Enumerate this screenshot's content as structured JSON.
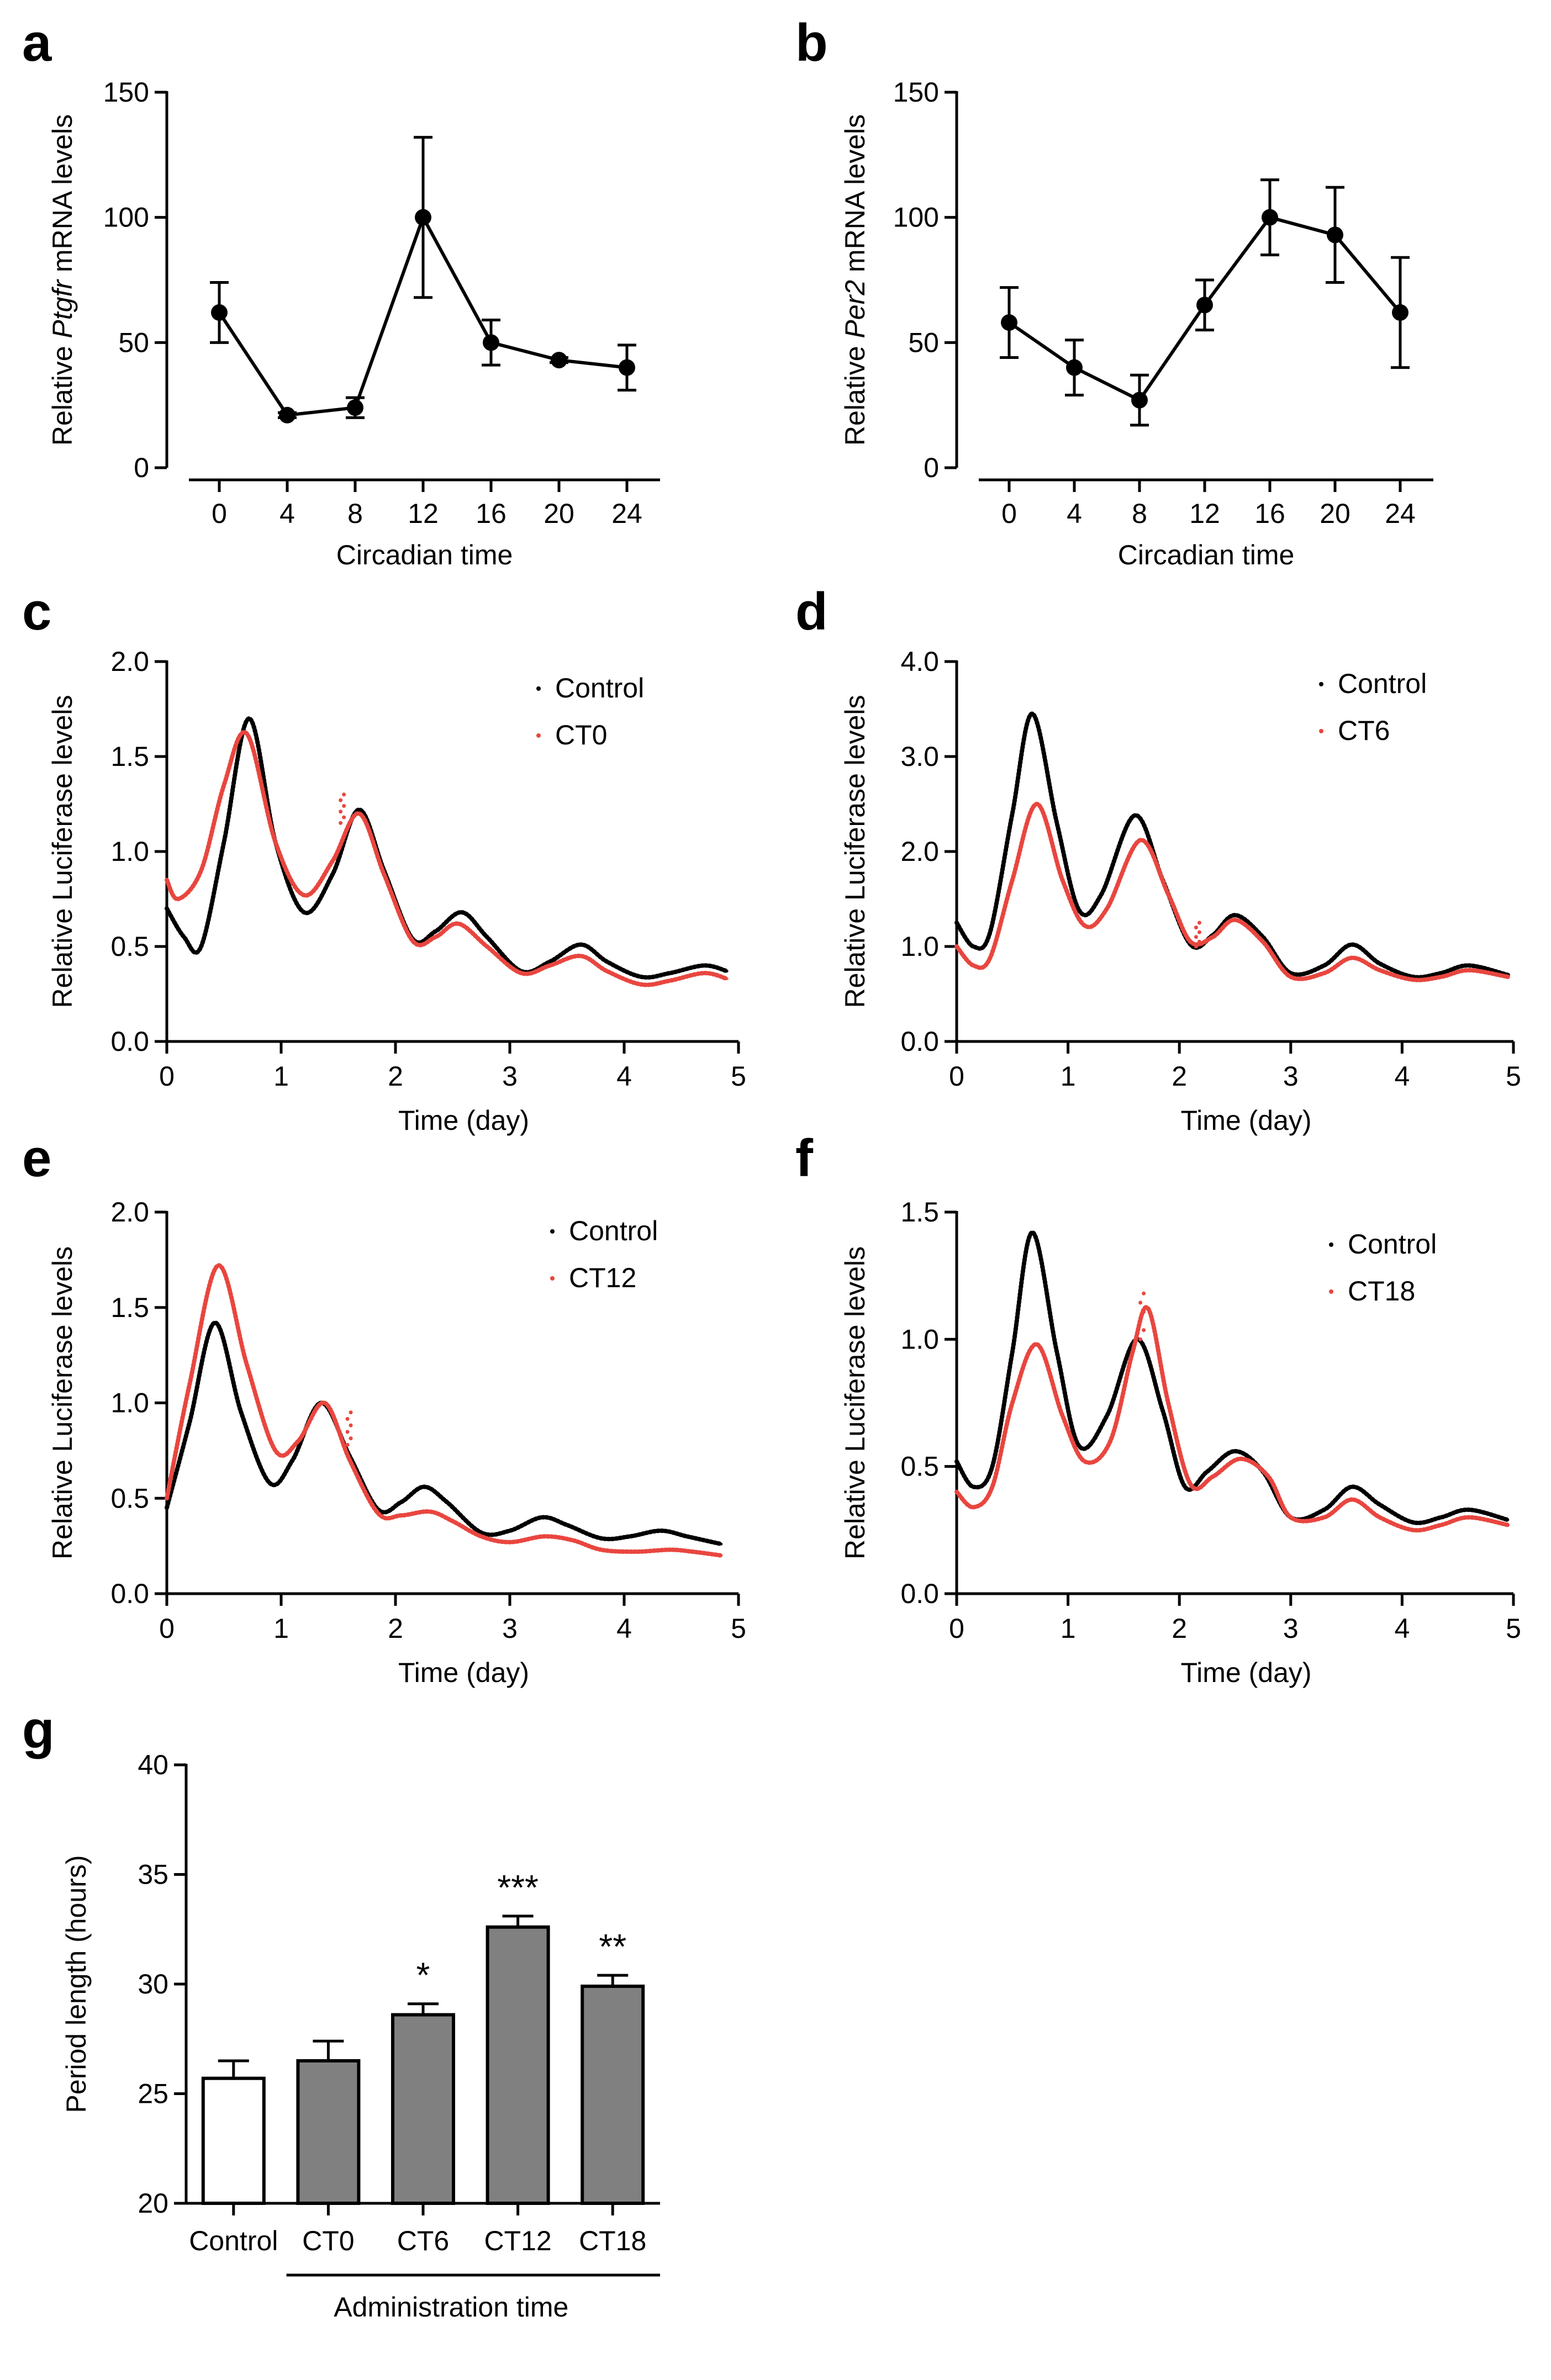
{
  "chart_data": [
    {
      "id": "a",
      "panel_label": "a",
      "type": "line",
      "x_values": [
        0,
        4,
        8,
        12,
        16,
        20,
        24
      ],
      "x_tick_labels": [
        "0",
        "4",
        "8",
        "12",
        "16",
        "20",
        "24"
      ],
      "values": [
        62,
        21,
        24,
        100,
        50,
        43,
        40
      ],
      "error": [
        12,
        1,
        4,
        32,
        9,
        1,
        9
      ],
      "xlabel": "Circadian time",
      "ylabel_prefix": "Relative ",
      "ylabel_gene": "Ptgfr",
      "ylabel_suffix": " mRNA levels",
      "ylim": [
        0,
        150
      ],
      "y_ticks": [
        0,
        50,
        100,
        150
      ],
      "y_tick_labels": [
        "0",
        "50",
        "100",
        "150"
      ],
      "color": "#000000"
    },
    {
      "id": "b",
      "panel_label": "b",
      "type": "line",
      "x_values": [
        0,
        4,
        8,
        12,
        16,
        20,
        24
      ],
      "x_tick_labels": [
        "0",
        "4",
        "8",
        "12",
        "16",
        "20",
        "24"
      ],
      "values": [
        58,
        40,
        27,
        65,
        100,
        93,
        62
      ],
      "error": [
        14,
        11,
        10,
        10,
        15,
        19,
        22
      ],
      "xlabel": "Circadian time",
      "ylabel_prefix": "Relative ",
      "ylabel_gene": "Per2",
      "ylabel_suffix": " mRNA levels",
      "ylim": [
        0,
        150
      ],
      "y_ticks": [
        0,
        50,
        100,
        150
      ],
      "y_tick_labels": [
        "0",
        "50",
        "100",
        "150"
      ],
      "color": "#000000"
    },
    {
      "id": "c",
      "panel_label": "c",
      "type": "scatter",
      "xlabel": "Time (day)",
      "ylabel": "Relative Luciferase levels",
      "xlim": [
        0,
        5
      ],
      "x_ticks": [
        0,
        1,
        2,
        3,
        4,
        5
      ],
      "x_tick_labels": [
        "0",
        "1",
        "2",
        "3",
        "4",
        "5"
      ],
      "ylim": [
        0,
        2.0
      ],
      "y_ticks": [
        0,
        0.5,
        1.0,
        1.5,
        2.0
      ],
      "y_tick_labels": [
        "0.0",
        "0.5",
        "1.0",
        "1.5",
        "2.0"
      ],
      "series": [
        {
          "name": "Control",
          "color": "#000000",
          "x": [
            0,
            0.15,
            0.3,
            0.5,
            0.72,
            0.95,
            1.2,
            1.45,
            1.68,
            1.9,
            2.15,
            2.35,
            2.58,
            2.8,
            3.1,
            3.35,
            3.62,
            3.85,
            4.15,
            4.4,
            4.7,
            4.9
          ],
          "y": [
            0.7,
            0.55,
            0.5,
            1.05,
            1.7,
            1.05,
            0.68,
            0.88,
            1.22,
            0.9,
            0.54,
            0.58,
            0.68,
            0.55,
            0.37,
            0.42,
            0.51,
            0.42,
            0.34,
            0.36,
            0.4,
            0.37
          ]
        },
        {
          "name": "CT0",
          "color": "#e8473f",
          "x": [
            0,
            0.1,
            0.3,
            0.5,
            0.7,
            0.95,
            1.2,
            1.45,
            1.68,
            1.9,
            2.15,
            2.35,
            2.55,
            2.8,
            3.1,
            3.35,
            3.62,
            3.85,
            4.15,
            4.4,
            4.7,
            4.9
          ],
          "y": [
            0.85,
            0.75,
            0.9,
            1.35,
            1.62,
            1.05,
            0.77,
            0.95,
            1.2,
            0.88,
            0.53,
            0.55,
            0.62,
            0.5,
            0.36,
            0.4,
            0.45,
            0.37,
            0.3,
            0.32,
            0.36,
            0.33
          ]
        }
      ],
      "spike_series": 1,
      "spike": {
        "x": 1.52,
        "y0": 1.15,
        "y1": 1.3
      }
    },
    {
      "id": "d",
      "panel_label": "d",
      "type": "scatter",
      "xlabel": "Time (day)",
      "ylabel": "Relative Luciferase levels",
      "xlim": [
        0,
        5
      ],
      "x_ticks": [
        0,
        1,
        2,
        3,
        4,
        5
      ],
      "x_tick_labels": [
        "0",
        "1",
        "2",
        "3",
        "4",
        "5"
      ],
      "ylim": [
        0,
        4.0
      ],
      "y_ticks": [
        0,
        1,
        2,
        3,
        4
      ],
      "y_tick_labels": [
        "0.0",
        "1.0",
        "2.0",
        "3.0",
        "4.0"
      ],
      "series": [
        {
          "name": "Control",
          "color": "#000000",
          "x": [
            0,
            0.15,
            0.3,
            0.5,
            0.68,
            0.9,
            1.1,
            1.3,
            1.6,
            1.85,
            2.1,
            2.3,
            2.5,
            2.75,
            3.0,
            3.3,
            3.55,
            3.8,
            4.1,
            4.35,
            4.6,
            4.95
          ],
          "y": [
            1.25,
            1.0,
            1.15,
            2.4,
            3.45,
            2.3,
            1.38,
            1.55,
            2.38,
            1.7,
            1.02,
            1.12,
            1.33,
            1.1,
            0.72,
            0.8,
            1.02,
            0.82,
            0.68,
            0.72,
            0.8,
            0.7
          ]
        },
        {
          "name": "CT6",
          "color": "#e8473f",
          "x": [
            0,
            0.15,
            0.3,
            0.5,
            0.72,
            0.95,
            1.15,
            1.35,
            1.65,
            1.9,
            2.1,
            2.3,
            2.5,
            2.75,
            3.0,
            3.3,
            3.55,
            3.8,
            4.1,
            4.35,
            4.6,
            4.95
          ],
          "y": [
            1.0,
            0.8,
            0.88,
            1.7,
            2.5,
            1.7,
            1.22,
            1.4,
            2.12,
            1.55,
            1.05,
            1.1,
            1.28,
            1.05,
            0.68,
            0.72,
            0.88,
            0.75,
            0.65,
            0.68,
            0.75,
            0.68
          ]
        }
      ],
      "spike_series": 1,
      "spike": {
        "x": 2.15,
        "y0": 1.0,
        "y1": 1.25
      }
    },
    {
      "id": "e",
      "panel_label": "e",
      "type": "scatter",
      "xlabel": "Time (day)",
      "ylabel": "Relative Luciferase levels",
      "xlim": [
        0,
        5
      ],
      "x_ticks": [
        0,
        1,
        2,
        3,
        4,
        5
      ],
      "x_tick_labels": [
        "0",
        "1",
        "2",
        "3",
        "4",
        "5"
      ],
      "ylim": [
        0,
        2.0
      ],
      "y_ticks": [
        0,
        0.5,
        1.0,
        1.5,
        2.0
      ],
      "y_tick_labels": [
        "0.0",
        "0.5",
        "1.0",
        "1.5",
        "2.0"
      ],
      "series": [
        {
          "name": "Control",
          "color": "#000000",
          "x": [
            0,
            0.2,
            0.42,
            0.65,
            0.9,
            1.1,
            1.35,
            1.6,
            1.85,
            2.05,
            2.25,
            2.45,
            2.75,
            3.0,
            3.28,
            3.5,
            3.8,
            4.05,
            4.32,
            4.55,
            4.85
          ],
          "y": [
            0.45,
            0.9,
            1.42,
            0.95,
            0.58,
            0.7,
            1.0,
            0.72,
            0.44,
            0.48,
            0.56,
            0.48,
            0.32,
            0.33,
            0.4,
            0.36,
            0.29,
            0.3,
            0.33,
            0.3,
            0.26
          ]
        },
        {
          "name": "CT12",
          "color": "#e8473f",
          "x": [
            0,
            0.2,
            0.45,
            0.7,
            0.95,
            1.15,
            1.38,
            1.6,
            1.85,
            2.05,
            2.3,
            2.5,
            2.75,
            3.0,
            3.3,
            3.55,
            3.8,
            4.1,
            4.4,
            4.6,
            4.85
          ],
          "y": [
            0.5,
            1.1,
            1.72,
            1.2,
            0.75,
            0.8,
            1.0,
            0.7,
            0.42,
            0.41,
            0.43,
            0.38,
            0.3,
            0.27,
            0.3,
            0.28,
            0.23,
            0.22,
            0.23,
            0.22,
            0.2
          ]
        }
      ],
      "spike_series": 1,
      "spike": {
        "x": 1.58,
        "y0": 0.78,
        "y1": 0.95
      }
    },
    {
      "id": "f",
      "panel_label": "f",
      "type": "scatter",
      "xlabel": "Time (day)",
      "ylabel": "Relative Luciferase levels",
      "xlim": [
        0,
        5
      ],
      "x_ticks": [
        0,
        1,
        2,
        3,
        4,
        5
      ],
      "x_tick_labels": [
        "0",
        "1",
        "2",
        "3",
        "4",
        "5"
      ],
      "ylim": [
        0,
        1.5
      ],
      "y_ticks": [
        0,
        0.5,
        1.0,
        1.5
      ],
      "y_tick_labels": [
        "0.0",
        "0.5",
        "1.0",
        "1.5"
      ],
      "series": [
        {
          "name": "Control",
          "color": "#000000",
          "x": [
            0,
            0.15,
            0.32,
            0.5,
            0.68,
            0.9,
            1.1,
            1.35,
            1.62,
            1.85,
            2.05,
            2.25,
            2.5,
            2.75,
            3.0,
            3.3,
            3.55,
            3.8,
            4.1,
            4.35,
            4.6,
            4.95
          ],
          "y": [
            0.52,
            0.42,
            0.5,
            0.95,
            1.42,
            0.95,
            0.58,
            0.7,
            1.0,
            0.72,
            0.42,
            0.48,
            0.56,
            0.48,
            0.3,
            0.33,
            0.42,
            0.35,
            0.28,
            0.3,
            0.33,
            0.29
          ]
        },
        {
          "name": "CT18",
          "color": "#e8473f",
          "x": [
            0,
            0.15,
            0.32,
            0.5,
            0.72,
            0.95,
            1.15,
            1.38,
            1.58,
            1.72,
            1.9,
            2.1,
            2.3,
            2.55,
            2.8,
            3.0,
            3.3,
            3.55,
            3.8,
            4.1,
            4.35,
            4.6,
            4.95
          ],
          "y": [
            0.4,
            0.34,
            0.42,
            0.75,
            0.98,
            0.7,
            0.52,
            0.6,
            0.95,
            1.12,
            0.75,
            0.43,
            0.46,
            0.53,
            0.46,
            0.3,
            0.3,
            0.37,
            0.3,
            0.25,
            0.27,
            0.3,
            0.27
          ]
        }
      ],
      "spike_series": 1,
      "spike": {
        "x": 1.65,
        "y0": 1.0,
        "y1": 1.18
      }
    },
    {
      "id": "g",
      "panel_label": "g",
      "type": "bar",
      "categories": [
        "Control",
        "CT0",
        "CT6",
        "CT12",
        "CT18"
      ],
      "values": [
        25.7,
        26.5,
        28.6,
        32.6,
        29.9
      ],
      "error": [
        0.8,
        0.9,
        0.5,
        0.5,
        0.5
      ],
      "significance": [
        "",
        "",
        "*",
        "***",
        "**"
      ],
      "bar_colors": [
        "#ffffff",
        "#808080",
        "#808080",
        "#808080",
        "#808080"
      ],
      "ylabel": "Period length (hours)",
      "ylim": [
        20,
        40
      ],
      "y_ticks": [
        20,
        25,
        30,
        35,
        40
      ],
      "y_tick_labels": [
        "20",
        "25",
        "30",
        "35",
        "40"
      ],
      "group_label": "Administration time"
    }
  ]
}
